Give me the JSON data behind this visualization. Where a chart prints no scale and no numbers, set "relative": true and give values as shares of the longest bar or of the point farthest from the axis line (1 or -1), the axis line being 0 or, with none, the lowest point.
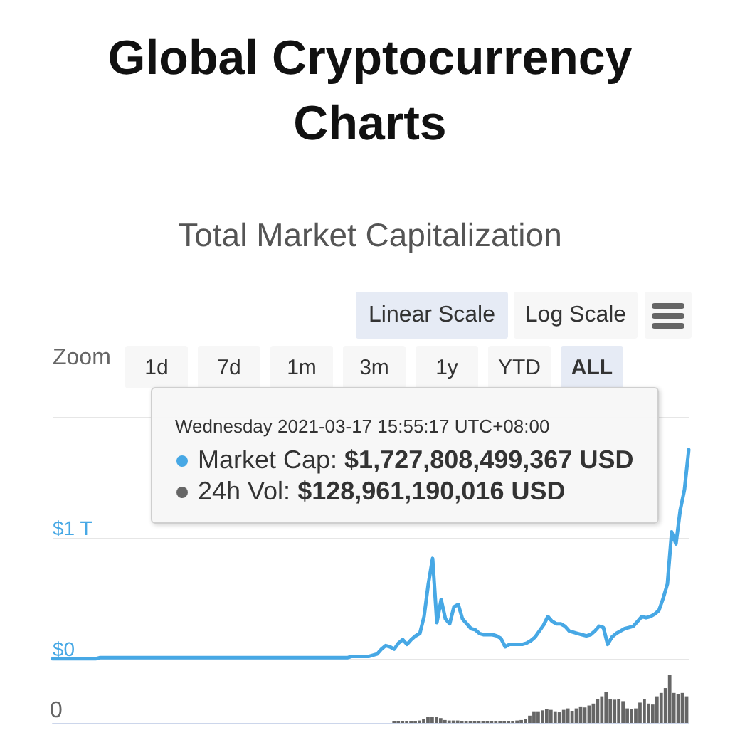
{
  "chart_data": [
    {
      "type": "line",
      "title": "Global Cryptocurrency Charts",
      "subtitle": "Total Market Capitalization",
      "categories": [
        null,
        null,
        null,
        null,
        null,
        null,
        null,
        null,
        null,
        null,
        null,
        null,
        null,
        null,
        null,
        null,
        null,
        null,
        null,
        null,
        null,
        null,
        null,
        null,
        null,
        null,
        null,
        null,
        null,
        null,
        null,
        null,
        null,
        null,
        null,
        null,
        null,
        null,
        null,
        null,
        null,
        null,
        null,
        null,
        null,
        null,
        null,
        null,
        null,
        null,
        null,
        null,
        null,
        null,
        null,
        null,
        null,
        null,
        null,
        null,
        null,
        null,
        null,
        null,
        null,
        null,
        null,
        null,
        null,
        null,
        null,
        null,
        null,
        null,
        null,
        null,
        null,
        null,
        null,
        null,
        null,
        null,
        null,
        null,
        null,
        null,
        null,
        null,
        null,
        null,
        null,
        null,
        null,
        null,
        null,
        null,
        null,
        null,
        null,
        null,
        null,
        null,
        null,
        null,
        null,
        null,
        null,
        null,
        null,
        null,
        null,
        null,
        null,
        null,
        null,
        null,
        null,
        null,
        null,
        null,
        null,
        null,
        null,
        null,
        null,
        null,
        null,
        null,
        null,
        null,
        null,
        null,
        null,
        null,
        null,
        null,
        null,
        null,
        null,
        null,
        null,
        null,
        null,
        null,
        null,
        null,
        null,
        null,
        null,
        null
      ],
      "values": [
        0,
        0,
        0,
        0,
        0,
        0,
        0,
        0,
        0,
        0,
        0,
        0.01,
        0.01,
        0.01,
        0.01,
        0.01,
        0.01,
        0.01,
        0.01,
        0.01,
        0.01,
        0.01,
        0.01,
        0.01,
        0.01,
        0.01,
        0.01,
        0.01,
        0.01,
        0.01,
        0.01,
        0.01,
        0.01,
        0.01,
        0.01,
        0.01,
        0.01,
        0.01,
        0.01,
        0.01,
        0.01,
        0.01,
        0.01,
        0.01,
        0.01,
        0.01,
        0.01,
        0.01,
        0.01,
        0.01,
        0.01,
        0.01,
        0.01,
        0.01,
        0.01,
        0.01,
        0.01,
        0.01,
        0.01,
        0.01,
        0.01,
        0.01,
        0.01,
        0.01,
        0.01,
        0.01,
        0.01,
        0.01,
        0.01,
        0.01,
        0.02,
        0.02,
        0.02,
        0.02,
        0.02,
        0.03,
        0.04,
        0.08,
        0.11,
        0.1,
        0.08,
        0.13,
        0.16,
        0.12,
        0.16,
        0.19,
        0.21,
        0.35,
        0.62,
        0.83,
        0.3,
        0.49,
        0.33,
        0.29,
        0.43,
        0.45,
        0.33,
        0.29,
        0.25,
        0.24,
        0.21,
        0.2,
        0.2,
        0.2,
        0.19,
        0.17,
        0.1,
        0.12,
        0.12,
        0.12,
        0.12,
        0.13,
        0.15,
        0.18,
        0.23,
        0.28,
        0.35,
        0.31,
        0.29,
        0.29,
        0.27,
        0.23,
        0.22,
        0.21,
        0.2,
        0.19,
        0.2,
        0.23,
        0.27,
        0.26,
        0.12,
        0.18,
        0.21,
        0.23,
        0.25,
        0.26,
        0.27,
        0.31,
        0.35,
        0.34,
        0.35,
        0.37,
        0.4,
        0.5,
        0.62,
        1.05,
        0.95,
        1.23,
        1.4,
        1.73
      ],
      "color": "#47a8e5",
      "ylim": [
        0,
        2
      ],
      "yticks": [
        {
          "value": 0,
          "label": "$0"
        },
        {
          "value": 1,
          "label": "$1 T"
        },
        {
          "value": 2,
          "label": null
        }
      ],
      "grid": "y",
      "tick_labels": "y",
      "annotations": [
        "Wednesday 2021-03-17 15:55:17 UTC+08:00",
        "Market Cap: $1,727,808,499,367 USD",
        "24h Vol: $128,961,190,016 USD",
        "Linear Scale",
        "Log Scale",
        "Zoom",
        "1d",
        "7d",
        "1m",
        "3m",
        "1y",
        "YTD",
        "ALL"
      ]
    },
    {
      "type": "bar",
      "relative": true,
      "color": "#666666",
      "tick_labels": false,
      "annotations": [
        "0"
      ],
      "categories": [
        null,
        null,
        null,
        null,
        null,
        null,
        null,
        null,
        null,
        null,
        null,
        null,
        null,
        null,
        null,
        null,
        null,
        null,
        null,
        null,
        null,
        null,
        null,
        null,
        null,
        null,
        null,
        null,
        null,
        null,
        null,
        null,
        null,
        null,
        null,
        null,
        null,
        null,
        null,
        null,
        null,
        null,
        null,
        null,
        null,
        null,
        null,
        null,
        null,
        null,
        null,
        null,
        null,
        null,
        null,
        null,
        null,
        null,
        null,
        null,
        null,
        null,
        null,
        null,
        null,
        null,
        null,
        null,
        null,
        null,
        null,
        null,
        null,
        null,
        null,
        null,
        null,
        null,
        null,
        null,
        null,
        null,
        null,
        null,
        null,
        null,
        null,
        null,
        null,
        null,
        null,
        null,
        null,
        null,
        null,
        null,
        null,
        null,
        null,
        null,
        null,
        null,
        null,
        null,
        null,
        null,
        null,
        null,
        null,
        null,
        null,
        null,
        null,
        null,
        null,
        null,
        null,
        null,
        null,
        null,
        null,
        null,
        null,
        null,
        null,
        null,
        null,
        null,
        null,
        null,
        null,
        null,
        null,
        null,
        null,
        null,
        null,
        null,
        null,
        null,
        null,
        null,
        null,
        null,
        null,
        null,
        null,
        null,
        null,
        null
      ],
      "values": [
        null,
        null,
        null,
        null,
        null,
        null,
        null,
        null,
        null,
        null,
        null,
        null,
        null,
        null,
        null,
        null,
        null,
        null,
        null,
        null,
        null,
        null,
        null,
        null,
        null,
        null,
        null,
        null,
        null,
        null,
        null,
        null,
        null,
        null,
        null,
        null,
        null,
        null,
        null,
        null,
        null,
        null,
        null,
        null,
        null,
        null,
        null,
        null,
        null,
        null,
        null,
        null,
        null,
        null,
        null,
        null,
        null,
        null,
        null,
        null,
        null,
        null,
        null,
        null,
        null,
        null,
        null,
        null,
        null,
        null,
        null,
        null,
        null,
        null,
        null,
        null,
        null,
        null,
        null,
        null,
        0.03,
        0.03,
        0.03,
        0.03,
        0.03,
        0.04,
        0.05,
        0.08,
        0.12,
        0.13,
        0.12,
        0.1,
        0.06,
        0.05,
        0.05,
        0.05,
        0.04,
        0.04,
        0.04,
        0.04,
        0.04,
        0.03,
        0.03,
        0.03,
        0.03,
        0.04,
        0.04,
        0.04,
        0.04,
        0.05,
        0.06,
        0.08,
        0.15,
        0.24,
        0.24,
        0.26,
        0.29,
        0.27,
        0.24,
        0.22,
        0.27,
        0.3,
        0.25,
        0.3,
        0.34,
        0.32,
        0.36,
        0.4,
        0.5,
        0.55,
        0.64,
        0.5,
        0.48,
        0.5,
        0.45,
        0.3,
        0.28,
        0.3,
        0.42,
        0.5,
        0.4,
        0.38,
        0.55,
        0.62,
        0.72,
        1,
        0.62,
        0.6,
        0.62,
        0.55
      ]
    }
  ]
}
